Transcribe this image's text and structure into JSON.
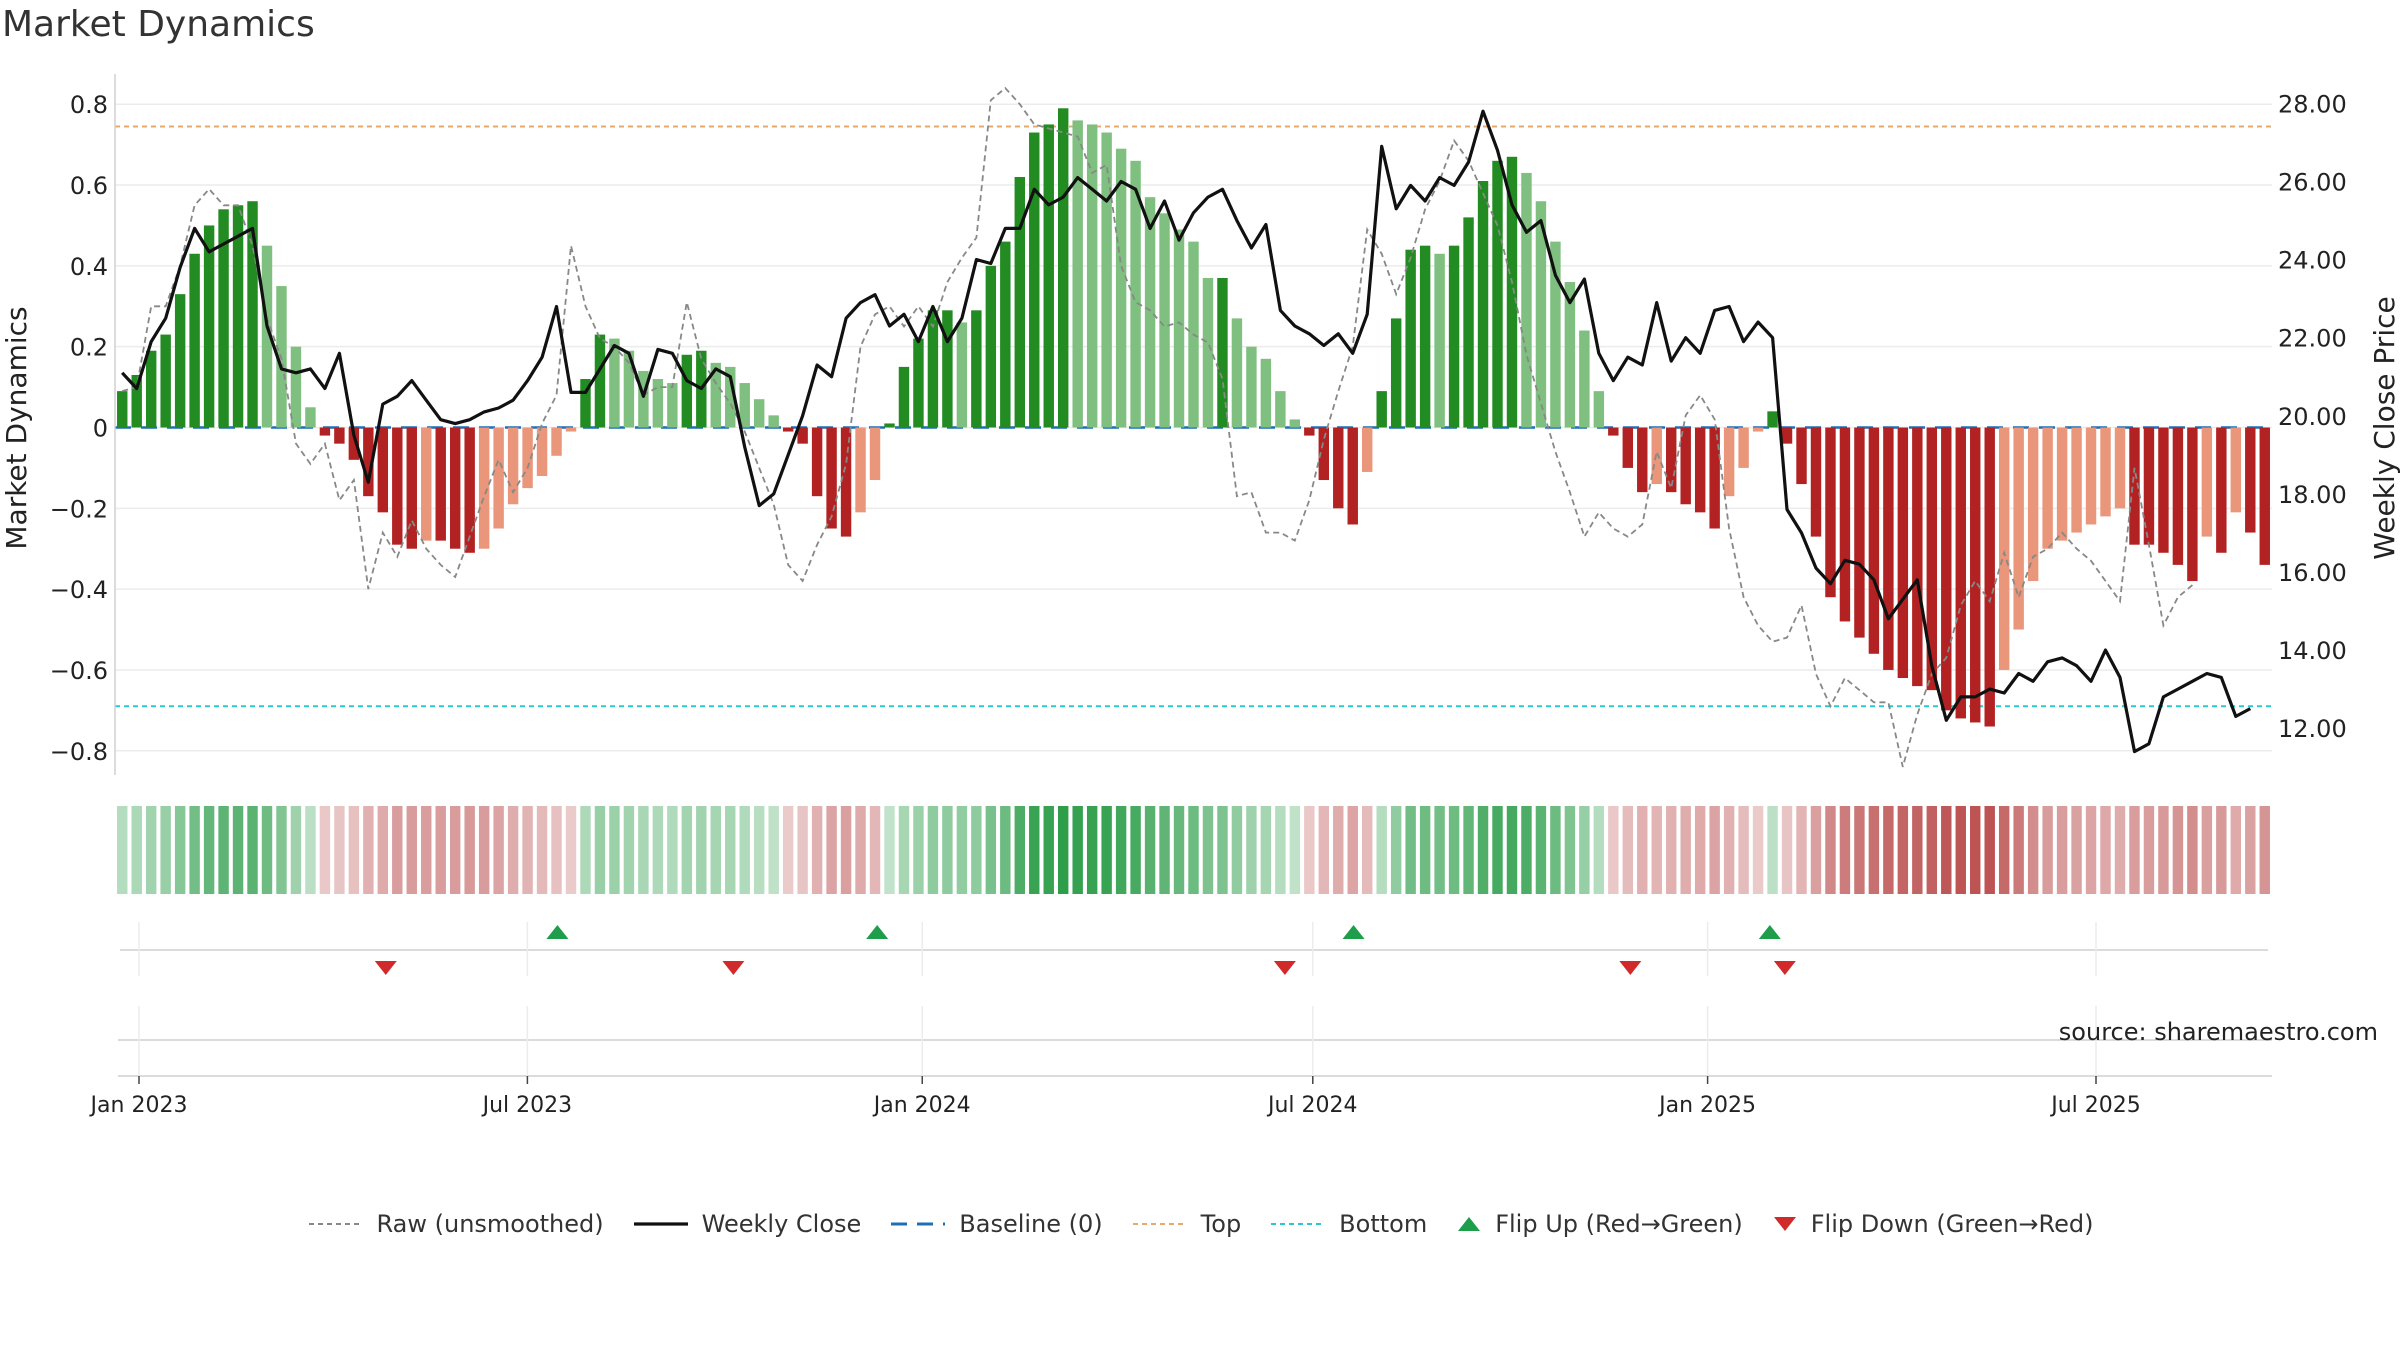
{
  "title": "Market Dynamics",
  "source": "source: sharemaestro.com",
  "colors": {
    "green_strong": "#228B22",
    "green_weak": "#7FBF7F",
    "red_strong": "#B22222",
    "red_weak": "#E9967A",
    "raw": "#888888",
    "close": "#111111",
    "baseline": "#1F6FB5",
    "top": "#E8A86B",
    "bottom": "#2BC7CF",
    "flip_up": "#1E9E4A",
    "flip_down": "#D12A2A",
    "strip_green": "#2E9E4B",
    "strip_red": "#B94A4A"
  },
  "legend": [
    {
      "key": "raw",
      "label": "Raw (unsmoothed)",
      "icon": "dotted-line"
    },
    {
      "key": "close",
      "label": "Weekly Close",
      "icon": "solid-line"
    },
    {
      "key": "baseline",
      "label": "Baseline (0)",
      "icon": "dashed-line"
    },
    {
      "key": "top",
      "label": "Top",
      "icon": "dotted-line"
    },
    {
      "key": "bottom",
      "label": "Bottom",
      "icon": "dotted-line"
    },
    {
      "key": "flip_up",
      "label": "Flip Up (Red→Green)",
      "icon": "triangle-up"
    },
    {
      "key": "flip_down",
      "label": "Flip Down (Green→Red)",
      "icon": "triangle-down"
    }
  ],
  "chart_data": {
    "type": "bar",
    "title": "Market Dynamics",
    "ylabel_left": "Market Dynamics",
    "ylabel_right": "Weekly Close Price",
    "x_tick_labels": [
      "Jan 2023",
      "Jul 2023",
      "Jan 2024",
      "Jul 2024",
      "Jan 2025",
      "Jul 2025"
    ],
    "x_tick_dates": [
      "2023-01-01",
      "2023-07-01",
      "2024-01-01",
      "2024-07-01",
      "2025-01-01",
      "2025-07-01"
    ],
    "left_ylim": [
      -0.86,
      0.86
    ],
    "left_ticks": [
      0.8,
      0.6,
      0.4,
      0.2,
      0,
      -0.2,
      -0.4,
      -0.6,
      -0.8
    ],
    "left_tick_labels": [
      "0.8",
      "0.6",
      "0.4",
      "0.2",
      "0",
      "−0.2",
      "−0.4",
      "−0.6",
      "−0.8"
    ],
    "right_ylim": [
      10.8,
      28.6
    ],
    "right_ticks": [
      28,
      26,
      24,
      22,
      20,
      18,
      16,
      14,
      12
    ],
    "right_tick_labels": [
      "28.00",
      "26.00",
      "24.00",
      "22.00",
      "20.00",
      "18.00",
      "16.00",
      "14.00",
      "12.00"
    ],
    "top_level": 0.745,
    "bottom_level": -0.69,
    "baseline": 0,
    "grid": true,
    "legend_position": "bottom-center",
    "series": [
      {
        "name": "Market Dynamics",
        "values": [
          0.09,
          0.13,
          0.19,
          0.23,
          0.33,
          0.43,
          0.5,
          0.54,
          0.55,
          0.56,
          0.45,
          0.35,
          0.2,
          0.05,
          -0.02,
          -0.04,
          -0.08,
          -0.17,
          -0.21,
          -0.29,
          -0.3,
          -0.28,
          -0.28,
          -0.3,
          -0.31,
          -0.3,
          -0.25,
          -0.19,
          -0.15,
          -0.12,
          -0.07,
          -0.01,
          0.12,
          0.23,
          0.22,
          0.19,
          0.14,
          0.12,
          0.11,
          0.18,
          0.19,
          0.16,
          0.15,
          0.11,
          0.07,
          0.03,
          -0.01,
          -0.04,
          -0.17,
          -0.25,
          -0.27,
          -0.21,
          -0.13,
          0.01,
          0.15,
          0.22,
          0.29,
          0.29,
          0.26,
          0.29,
          0.4,
          0.46,
          0.62,
          0.73,
          0.75,
          0.79,
          0.76,
          0.75,
          0.73,
          0.69,
          0.66,
          0.57,
          0.53,
          0.49,
          0.46,
          0.37,
          0.37,
          0.27,
          0.2,
          0.17,
          0.09,
          0.02,
          -0.02,
          -0.13,
          -0.2,
          -0.24,
          -0.11,
          0.09,
          0.27,
          0.44,
          0.45,
          0.43,
          0.45,
          0.52,
          0.61,
          0.66,
          0.67,
          0.63,
          0.56,
          0.46,
          0.36,
          0.24,
          0.09,
          -0.02,
          -0.1,
          -0.16,
          -0.14,
          -0.16,
          -0.19,
          -0.21,
          -0.25,
          -0.17,
          -0.1,
          -0.01,
          0.04,
          -0.04,
          -0.14,
          -0.27,
          -0.42,
          -0.48,
          -0.52,
          -0.56,
          -0.6,
          -0.62,
          -0.64,
          -0.65,
          -0.7,
          -0.72,
          -0.73,
          -0.74,
          -0.6,
          -0.5,
          -0.38,
          -0.3,
          -0.28,
          -0.26,
          -0.24,
          -0.22,
          -0.2,
          -0.29,
          -0.29,
          -0.31,
          -0.34,
          -0.38,
          -0.27,
          -0.31,
          -0.21,
          -0.26,
          -0.34
        ]
      },
      {
        "name": "Raw (unsmoothed)",
        "values": [
          0.09,
          0.1,
          0.3,
          0.3,
          0.4,
          0.55,
          0.59,
          0.55,
          0.55,
          0.45,
          0.27,
          0.17,
          -0.04,
          -0.09,
          -0.04,
          -0.18,
          -0.13,
          -0.4,
          -0.26,
          -0.32,
          -0.23,
          -0.3,
          -0.34,
          -0.37,
          -0.27,
          -0.17,
          -0.08,
          -0.16,
          -0.1,
          0.01,
          0.08,
          0.45,
          0.3,
          0.22,
          0.2,
          0.16,
          0.08,
          0.1,
          0.1,
          0.31,
          0.17,
          0.11,
          0.06,
          -0.01,
          -0.1,
          -0.19,
          -0.34,
          -0.38,
          -0.29,
          -0.22,
          -0.09,
          0.2,
          0.28,
          0.3,
          0.25,
          0.3,
          0.25,
          0.36,
          0.42,
          0.47,
          0.81,
          0.84,
          0.8,
          0.75,
          0.74,
          0.73,
          0.72,
          0.63,
          0.65,
          0.4,
          0.31,
          0.29,
          0.25,
          0.26,
          0.23,
          0.21,
          0.12,
          -0.17,
          -0.16,
          -0.26,
          -0.26,
          -0.28,
          -0.18,
          -0.03,
          0.09,
          0.2,
          0.49,
          0.43,
          0.33,
          0.42,
          0.54,
          0.61,
          0.71,
          0.66,
          0.58,
          0.5,
          0.36,
          0.18,
          0.06,
          -0.06,
          -0.16,
          -0.27,
          -0.21,
          -0.25,
          -0.27,
          -0.24,
          -0.06,
          -0.15,
          0.03,
          0.08,
          0.02,
          -0.25,
          -0.42,
          -0.49,
          -0.53,
          -0.52,
          -0.44,
          -0.61,
          -0.69,
          -0.62,
          -0.65,
          -0.68,
          -0.68,
          -0.84,
          -0.71,
          -0.61,
          -0.57,
          -0.44,
          -0.38,
          -0.43,
          -0.31,
          -0.42,
          -0.32,
          -0.3,
          -0.26,
          -0.3,
          -0.33,
          -0.38,
          -0.43,
          -0.1,
          -0.29,
          -0.49,
          -0.42,
          -0.39
        ]
      },
      {
        "name": "Weekly Close",
        "values": [
          21.1,
          20.7,
          21.9,
          22.5,
          23.8,
          24.8,
          24.2,
          24.4,
          24.6,
          24.8,
          22.3,
          21.2,
          21.1,
          21.2,
          20.7,
          21.6,
          19.5,
          18.3,
          20.3,
          20.5,
          20.9,
          20.4,
          19.9,
          19.8,
          19.9,
          20.1,
          20.2,
          20.4,
          20.9,
          21.5,
          22.8,
          20.6,
          20.6,
          21.2,
          21.8,
          21.6,
          20.5,
          21.7,
          21.6,
          20.9,
          20.7,
          21.2,
          21.0,
          19.2,
          17.7,
          18.0,
          19.0,
          20.0,
          21.3,
          21.0,
          22.5,
          22.9,
          23.1,
          22.3,
          22.6,
          21.9,
          22.8,
          21.9,
          22.5,
          24.0,
          23.9,
          24.8,
          24.8,
          25.8,
          25.4,
          25.6,
          26.1,
          25.8,
          25.5,
          26.0,
          25.8,
          24.8,
          25.5,
          24.5,
          25.2,
          25.6,
          25.8,
          25.0,
          24.3,
          24.9,
          22.7,
          22.3,
          22.1,
          21.8,
          22.1,
          21.6,
          22.6,
          26.9,
          25.3,
          25.9,
          25.5,
          26.1,
          25.9,
          26.5,
          27.8,
          26.8,
          25.4,
          24.7,
          25.0,
          23.6,
          22.9,
          23.5,
          21.6,
          20.9,
          21.5,
          21.3,
          22.9,
          21.4,
          22.0,
          21.6,
          22.7,
          22.8,
          21.9,
          22.4,
          22.0,
          17.6,
          17.0,
          16.1,
          15.7,
          16.3,
          16.2,
          15.8,
          14.8,
          15.3,
          15.8,
          13.6,
          12.2,
          12.8,
          12.8,
          13.0,
          12.9,
          13.4,
          13.2,
          13.7,
          13.8,
          13.6,
          13.2,
          14.0,
          13.3,
          11.4,
          11.6,
          12.8,
          13.0,
          13.2,
          13.4,
          13.3,
          12.3,
          12.5
        ]
      }
    ],
    "flip_up_dates": [
      "2023-07-15",
      "2023-12-11",
      "2024-07-20",
      "2025-01-30"
    ],
    "flip_down_dates": [
      "2023-04-26",
      "2023-10-05",
      "2024-06-18",
      "2024-11-26",
      "2025-02-06"
    ]
  }
}
